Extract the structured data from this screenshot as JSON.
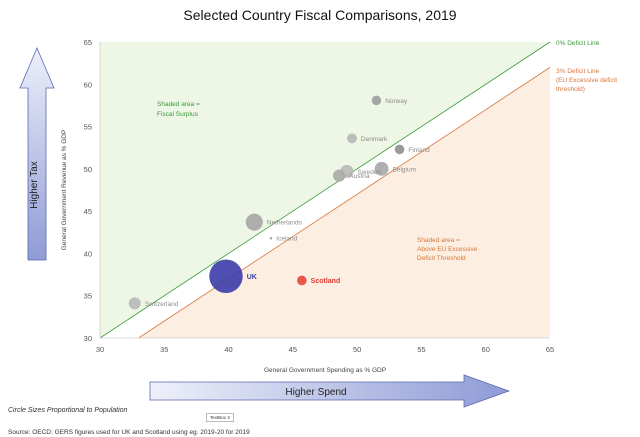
{
  "chart_data": {
    "type": "scatter",
    "title": "Selected Country Fiscal Comparisons, 2019",
    "xlabel": "General Government Spending as % GDP",
    "ylabel": "General Government Revenue as % GDP",
    "xlim": [
      30,
      65
    ],
    "ylim": [
      30,
      65
    ],
    "xticks": [
      30,
      35,
      40,
      45,
      50,
      55,
      60,
      65
    ],
    "yticks": [
      30,
      35,
      40,
      45,
      50,
      55,
      60,
      65
    ],
    "grid": false,
    "points": [
      {
        "label": "Norway",
        "x": 51.5,
        "y": 58.1,
        "size": 5.4,
        "color": "#9e9e9e",
        "label_color": "#8c8c8c"
      },
      {
        "label": "Denmark",
        "x": 49.6,
        "y": 53.6,
        "size": 5.8,
        "color": "#b8b8b8",
        "label_color": "#8c8c8c"
      },
      {
        "label": "Finland",
        "x": 53.3,
        "y": 52.3,
        "size": 5.5,
        "color": "#8f8f8f",
        "label_color": "#8c8c8c"
      },
      {
        "label": "Sweden",
        "x": 49.2,
        "y": 49.7,
        "size": 10.3,
        "color": "#b8b8b8",
        "label_color": "#8c8c8c"
      },
      {
        "label": "Austria",
        "x": 48.6,
        "y": 49.2,
        "size": 8.9,
        "color": "#aaaaaa",
        "label_color": "#8c8c8c"
      },
      {
        "label": "Belgium",
        "x": 51.9,
        "y": 50.0,
        "size": 11.5,
        "color": "#a6a6a6",
        "label_color": "#8c8c8c"
      },
      {
        "label": "Netherlands",
        "x": 42.0,
        "y": 43.7,
        "size": 17.3,
        "color": "#a6a6a6",
        "label_color": "#8c8c8c"
      },
      {
        "label": "Iceland",
        "x": 43.3,
        "y": 41.8,
        "size": 0.4,
        "color": "#9e9e9e",
        "label_color": "#8c8c8c"
      },
      {
        "label": "UK",
        "x": 39.8,
        "y": 37.3,
        "size": 66.6,
        "color": "#3c3ca8",
        "label_color": "#3c3ca8"
      },
      {
        "label": "Scotland",
        "x": 45.7,
        "y": 36.8,
        "size": 5.5,
        "color": "#e8453c",
        "label_color": "#e03b2f"
      },
      {
        "label": "Switzerland",
        "x": 32.7,
        "y": 34.1,
        "size": 8.6,
        "color": "#b8b8b8",
        "label_color": "#8c8c8c"
      }
    ],
    "reference_lines": [
      {
        "name": "0% Deficit Line",
        "offset": 0,
        "color": "#3a9a3a",
        "label": "0% Deficit Line"
      },
      {
        "name": "3% Deficit Line",
        "offset": -3,
        "color": "#d9773a",
        "label_lines": [
          "3% Deficit Line",
          "(EU Excessive deficit",
          "threshold)"
        ]
      }
    ],
    "annotations": {
      "surplus": [
        "Shaded area =",
        "Fiscal Surplus"
      ],
      "deficit": [
        "Shaded area =",
        "Above EU Excessive",
        "Deficit Threshold"
      ]
    },
    "arrows": {
      "y": "Higher Tax",
      "x": "Higher Spend"
    }
  },
  "notes": {
    "sizes": "Circle Sizes Proportional to Population",
    "source": "Source: OECD; GERS figures used for UK and Scotland using eg. 2019-20 for 2019",
    "textbox": "TextBox 3"
  },
  "colors": {
    "surplus_fill": "#eef6e6",
    "deficit_fill": "#fcefe2",
    "arrow_fill_start": "#eef0fa",
    "arrow_fill_end": "#8e9bd6",
    "arrow_stroke": "#5a6ab0"
  }
}
